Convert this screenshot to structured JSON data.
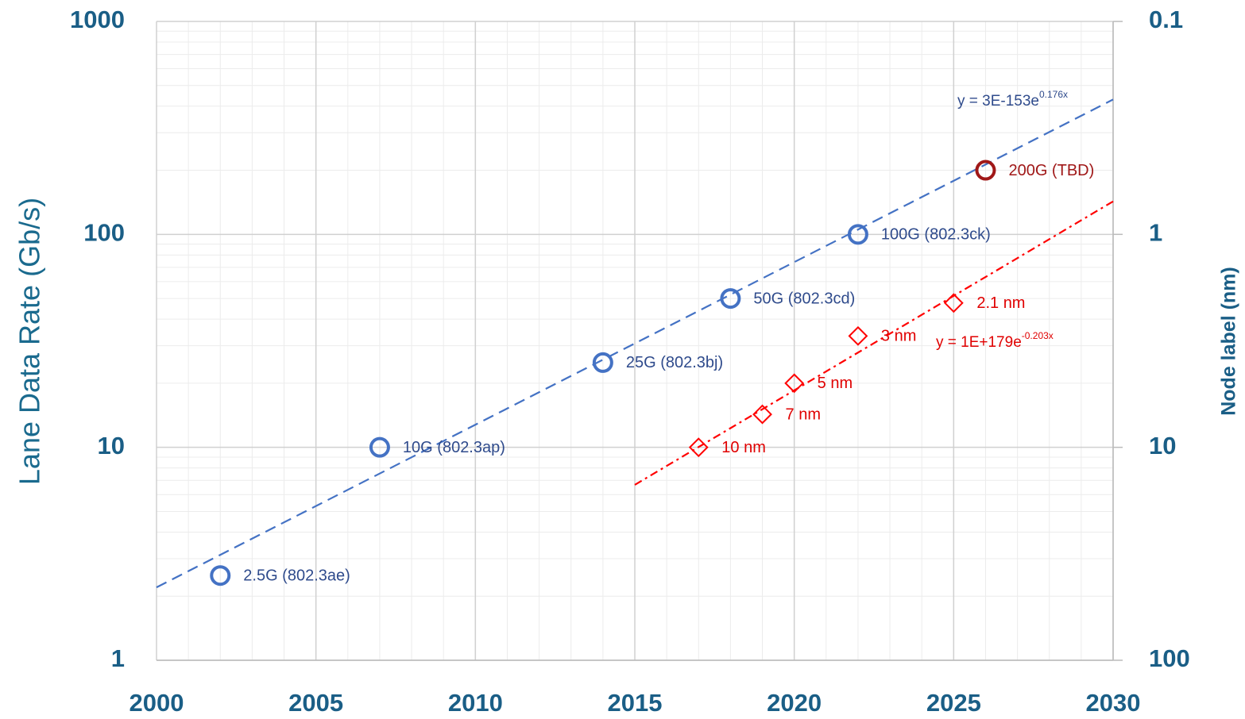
{
  "chart_data": {
    "type": "scatter",
    "y_label": "Lane Data Rate (Gb/s)",
    "y2_label": "Node label (nm)",
    "xlim": [
      2000,
      2030
    ],
    "xticks": [
      2000,
      2005,
      2010,
      2015,
      2020,
      2025,
      2030
    ],
    "ylim": [
      1,
      1000
    ],
    "yticks": [
      1,
      10,
      100,
      1000
    ],
    "y2lim": [
      0.1,
      100
    ],
    "y2ticks": [
      0.1,
      1,
      10,
      100
    ],
    "y_log": true,
    "y2_log": true,
    "y2_reversed": true,
    "grid": true,
    "minor_grid": true,
    "series": [
      {
        "x": [
          2002,
          2007,
          2014,
          2018,
          2022
        ],
        "values": [
          2.5,
          10,
          25,
          50,
          100
        ],
        "labels": [
          "2.5G (802.3ae)",
          "10G (802.3ap)",
          "25G (802.3bj)",
          "50G (802.3cd)",
          "100G (802.3ck)"
        ],
        "color": "#4472c4",
        "label_color": "#2f4b8c",
        "marker": "circle"
      },
      {
        "x": [
          2026
        ],
        "values": [
          200
        ],
        "labels": [
          "200G (TBD)"
        ],
        "color": "#a01818",
        "label_color": "#a01818",
        "marker": "circle"
      },
      {
        "x": [
          2017,
          2019,
          2020,
          2022,
          2025
        ],
        "values": [
          10,
          7,
          5,
          3,
          2.1
        ],
        "labels": [
          "10 nm",
          "7 nm",
          "5 nm",
          "3 nm",
          "2.1 nm"
        ],
        "color": "#ff0000",
        "label_color": "#e00000",
        "marker": "diamond",
        "axis": "y2"
      }
    ],
    "trendlines": [
      {
        "x": [
          2000,
          2030
        ],
        "values": [
          2.2,
          430
        ],
        "color": "#4472c4",
        "dash": "dashed",
        "equation": {
          "base": "y = 3E-153e",
          "exponent": "0.176x"
        },
        "equation_color": "#2f4b8c"
      },
      {
        "x": [
          2015,
          2030
        ],
        "values": [
          15,
          0.7
        ],
        "color": "#ff0000",
        "dash": "dashdot",
        "axis": "y2",
        "equation": {
          "base": "y = 1E+179e",
          "exponent": "-0.203x"
        },
        "equation_color": "#e00000"
      }
    ]
  }
}
